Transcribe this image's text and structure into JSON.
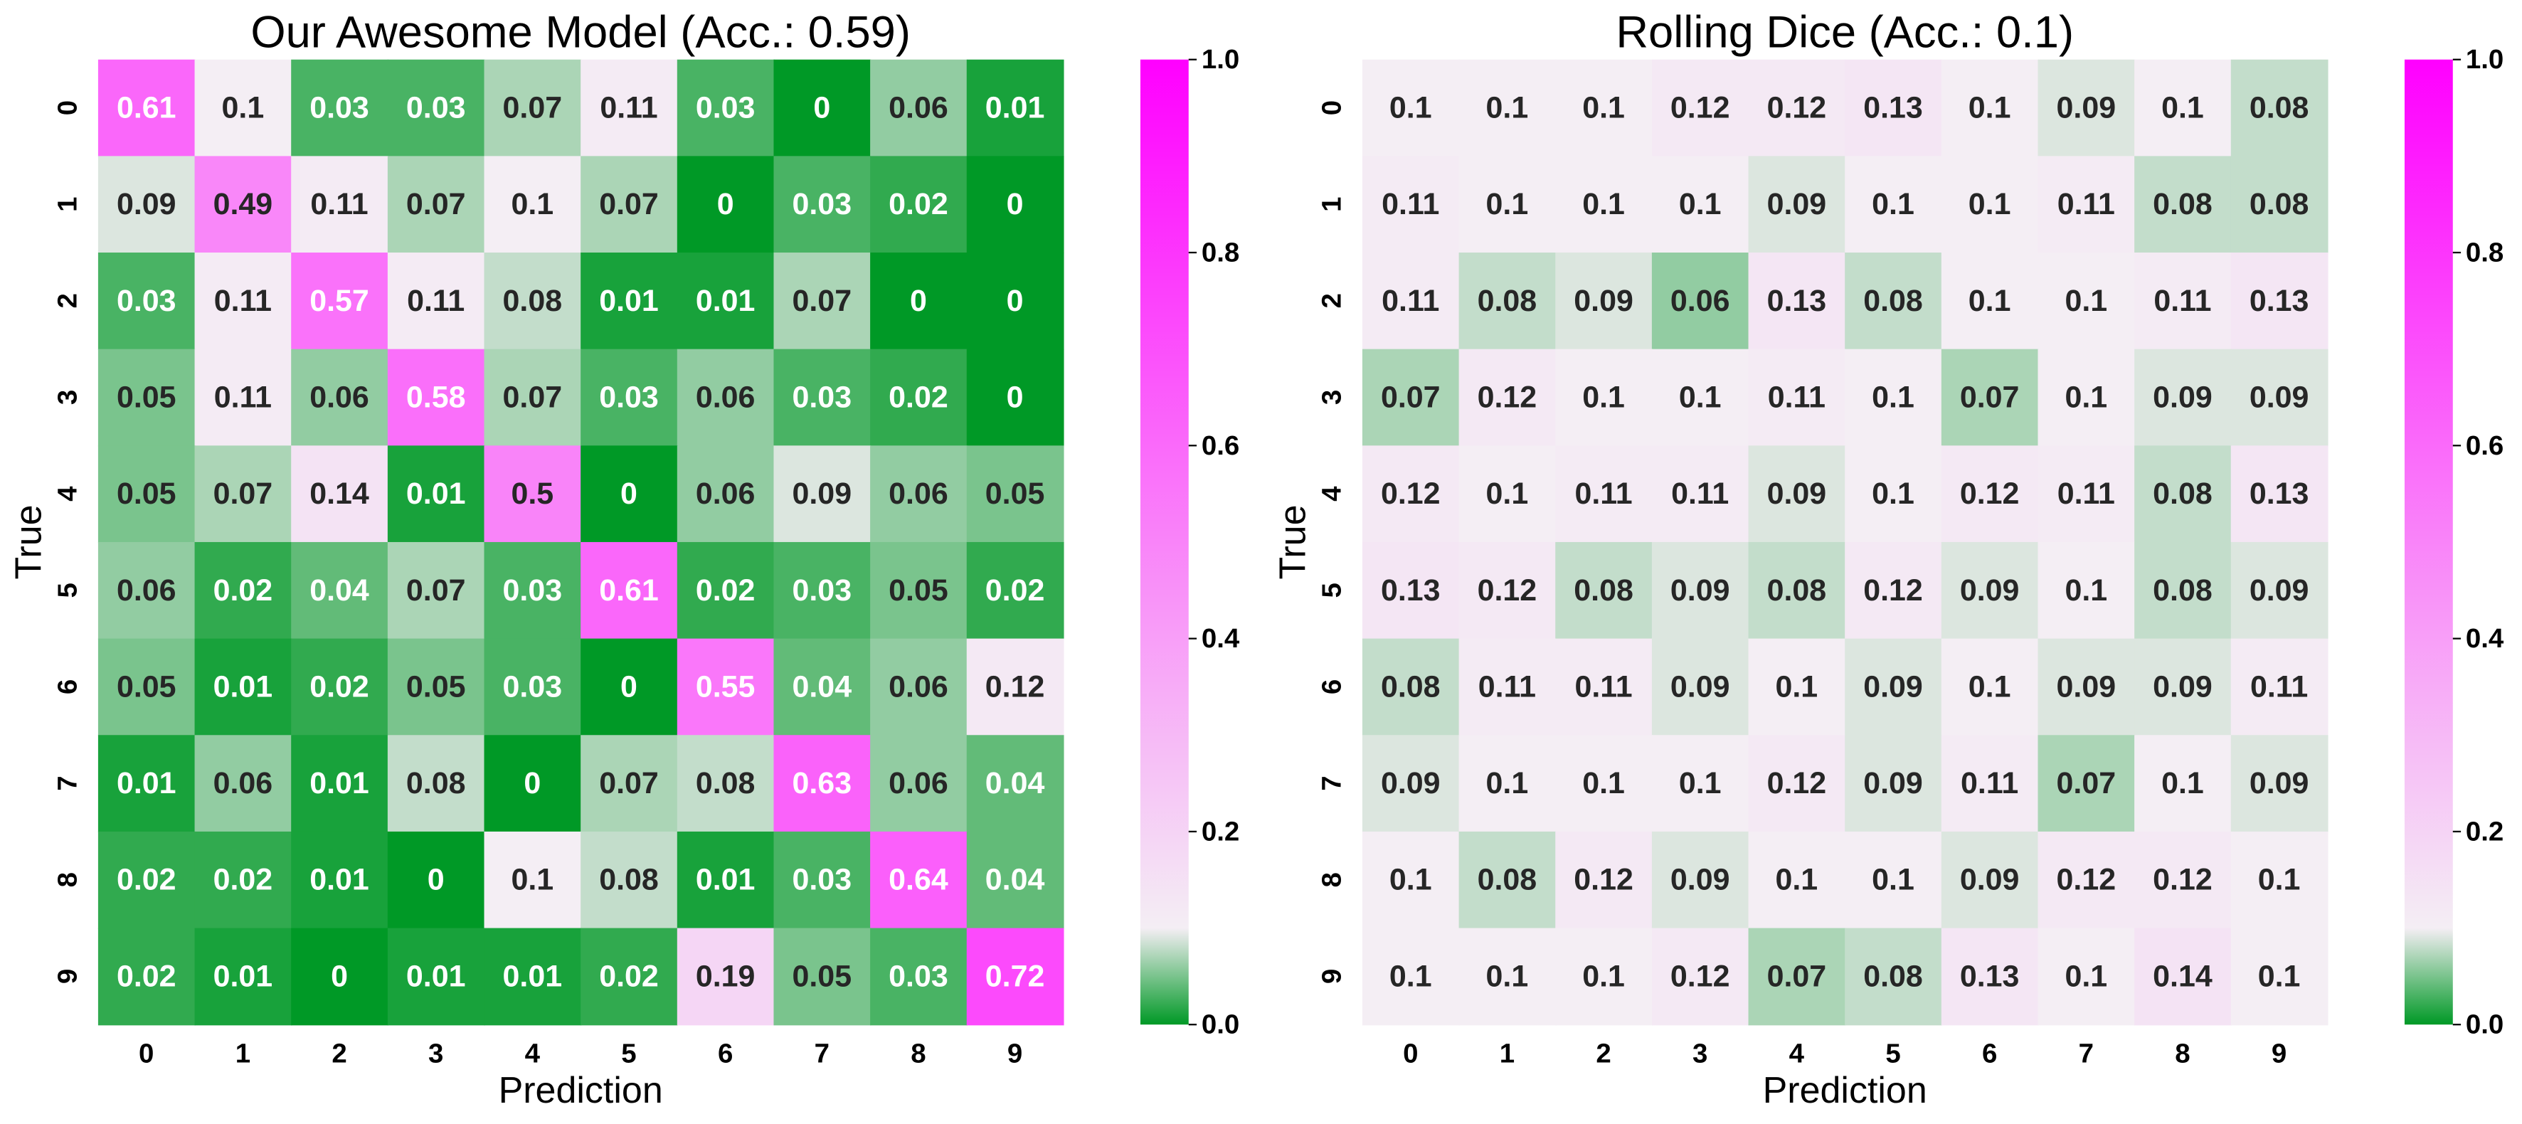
{
  "chart_data": [
    {
      "type": "heatmap",
      "title": "Our Awesome Model (Acc.: 0.59)",
      "xlabel": "Prediction",
      "ylabel": "True",
      "x": [
        "0",
        "1",
        "2",
        "3",
        "4",
        "5",
        "6",
        "7",
        "8",
        "9"
      ],
      "y": [
        "0",
        "1",
        "2",
        "3",
        "4",
        "5",
        "6",
        "7",
        "8",
        "9"
      ],
      "values": [
        [
          0.61,
          0.1,
          0.03,
          0.03,
          0.07,
          0.11,
          0.03,
          0,
          0.06,
          0.01
        ],
        [
          0.09,
          0.49,
          0.11,
          0.07,
          0.1,
          0.07,
          0,
          0.03,
          0.02,
          0
        ],
        [
          0.03,
          0.11,
          0.57,
          0.11,
          0.08,
          0.01,
          0.01,
          0.07,
          0,
          0
        ],
        [
          0.05,
          0.11,
          0.06,
          0.58,
          0.07,
          0.03,
          0.06,
          0.03,
          0.02,
          0
        ],
        [
          0.05,
          0.07,
          0.14,
          0.01,
          0.5,
          0,
          0.06,
          0.09,
          0.06,
          0.05
        ],
        [
          0.06,
          0.02,
          0.04,
          0.07,
          0.03,
          0.61,
          0.02,
          0.03,
          0.05,
          0.02
        ],
        [
          0.05,
          0.01,
          0.02,
          0.05,
          0.03,
          0,
          0.55,
          0.04,
          0.06,
          0.12
        ],
        [
          0.01,
          0.06,
          0.01,
          0.08,
          0,
          0.07,
          0.08,
          0.63,
          0.06,
          0.04
        ],
        [
          0.02,
          0.02,
          0.01,
          0,
          0.1,
          0.08,
          0.01,
          0.03,
          0.64,
          0.04
        ],
        [
          0.02,
          0.01,
          0,
          0.01,
          0.01,
          0.02,
          0.19,
          0.05,
          0.03,
          0.72
        ]
      ],
      "colorscale": [
        [
          0,
          "#009926"
        ],
        [
          0.1,
          "#f4eef4"
        ],
        [
          1,
          "#ff00ff"
        ]
      ],
      "clim": [
        0,
        1
      ],
      "cticks": [
        {
          "value": 0,
          "label": "0.0"
        },
        0.2,
        0.4,
        0.6,
        0.8,
        {
          "value": 1,
          "label": "1.0"
        }
      ]
    },
    {
      "type": "heatmap",
      "title": "Rolling Dice (Acc.: 0.1)",
      "xlabel": "Prediction",
      "ylabel": "True",
      "x": [
        "0",
        "1",
        "2",
        "3",
        "4",
        "5",
        "6",
        "7",
        "8",
        "9"
      ],
      "y": [
        "0",
        "1",
        "2",
        "3",
        "4",
        "5",
        "6",
        "7",
        "8",
        "9"
      ],
      "values": [
        [
          0.1,
          0.1,
          0.1,
          0.12,
          0.12,
          0.13,
          0.1,
          0.09,
          0.1,
          0.08
        ],
        [
          0.11,
          0.1,
          0.1,
          0.1,
          0.09,
          0.1,
          0.1,
          0.11,
          0.08,
          0.08
        ],
        [
          0.11,
          0.08,
          0.09,
          0.06,
          0.13,
          0.08,
          0.1,
          0.1,
          0.11,
          0.13
        ],
        [
          0.07,
          0.12,
          0.1,
          0.1,
          0.11,
          0.1,
          0.07,
          0.1,
          0.09,
          0.09
        ],
        [
          0.12,
          0.1,
          0.11,
          0.11,
          0.09,
          0.1,
          0.12,
          0.11,
          0.08,
          0.13
        ],
        [
          0.13,
          0.12,
          0.08,
          0.09,
          0.08,
          0.12,
          0.09,
          0.1,
          0.08,
          0.09
        ],
        [
          0.08,
          0.11,
          0.11,
          0.09,
          0.1,
          0.09,
          0.1,
          0.09,
          0.09,
          0.11
        ],
        [
          0.09,
          0.1,
          0.1,
          0.1,
          0.12,
          0.09,
          0.11,
          0.07,
          0.1,
          0.09
        ],
        [
          0.1,
          0.08,
          0.12,
          0.09,
          0.1,
          0.1,
          0.09,
          0.12,
          0.12,
          0.1
        ],
        [
          0.1,
          0.1,
          0.1,
          0.12,
          0.07,
          0.08,
          0.13,
          0.1,
          0.14,
          0.1
        ]
      ],
      "colorscale": [
        [
          0,
          "#009926"
        ],
        [
          0.1,
          "#f4eef4"
        ],
        [
          1,
          "#ff00ff"
        ]
      ],
      "clim": [
        0,
        1
      ],
      "cticks": [
        {
          "value": 0,
          "label": "0.0"
        },
        0.2,
        0.4,
        0.6,
        0.8,
        {
          "value": 1,
          "label": "1.0"
        }
      ]
    }
  ]
}
